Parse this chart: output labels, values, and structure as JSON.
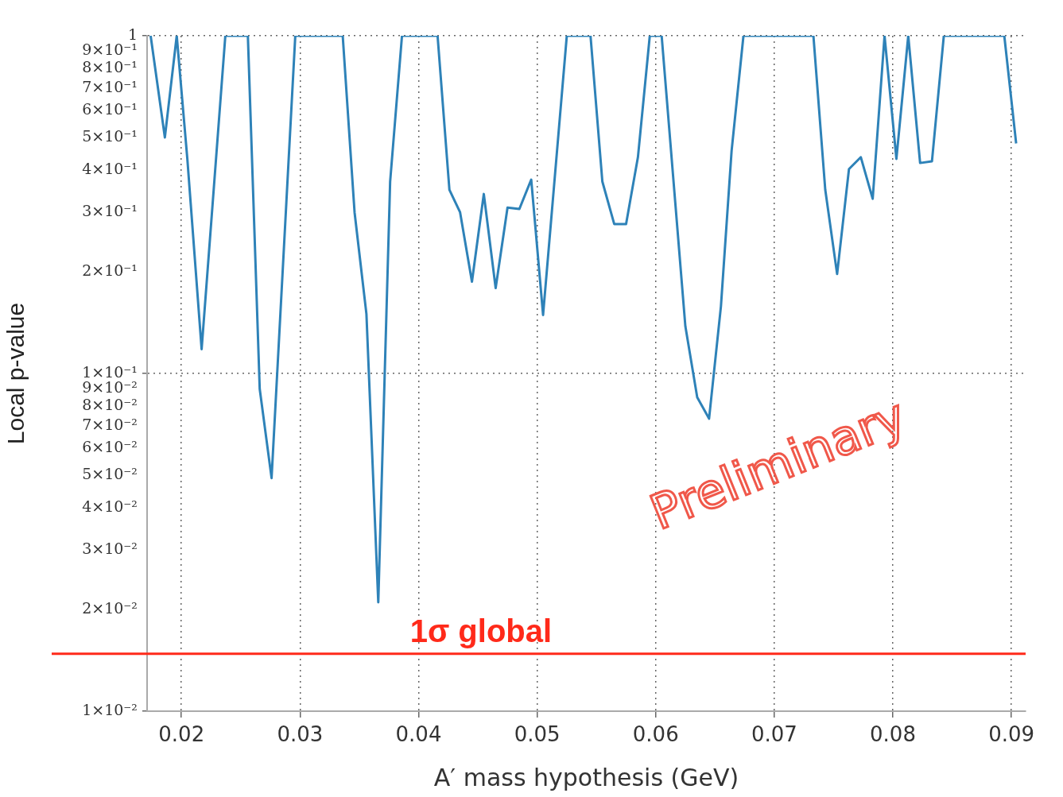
{
  "chart_data": {
    "type": "line",
    "xlabel": "A′ mass hypothesis (GeV)",
    "ylabel": "Local p-value",
    "log": "y",
    "grid": true,
    "line_style": "solid",
    "marker": "none",
    "xlim": [
      0.0171,
      0.0912
    ],
    "xticks": [
      0.02,
      0.03,
      0.04,
      0.05,
      0.06,
      0.07,
      0.08,
      0.09
    ],
    "ylim": [
      0.01,
      1
    ],
    "yticks": [
      {
        "value": 0.01,
        "label": "1×10⁻²"
      },
      {
        "value": 0.02,
        "label": "2×10⁻²"
      },
      {
        "value": 0.03,
        "label": "3×10⁻²"
      },
      {
        "value": 0.04,
        "label": "4×10⁻²"
      },
      {
        "value": 0.05,
        "label": "5×10⁻²"
      },
      {
        "value": 0.06,
        "label": "6×10⁻²"
      },
      {
        "value": 0.07,
        "label": "7×10⁻²"
      },
      {
        "value": 0.08,
        "label": "8×10⁻²"
      },
      {
        "value": 0.09,
        "label": "9×10⁻²"
      },
      {
        "value": 0.1,
        "label": "1×10⁻¹"
      },
      {
        "value": 0.2,
        "label": "2×10⁻¹"
      },
      {
        "value": 0.3,
        "label": "3×10⁻¹"
      },
      {
        "value": 0.4,
        "label": "4×10⁻¹"
      },
      {
        "value": 0.5,
        "label": "5×10⁻¹"
      },
      {
        "value": 0.6,
        "label": "6×10⁻¹"
      },
      {
        "value": 0.7,
        "label": "7×10⁻¹"
      },
      {
        "value": 0.8,
        "label": "8×10⁻¹"
      },
      {
        "value": 0.9,
        "label": "9×10⁻¹"
      },
      1
    ],
    "series": [
      {
        "color": "#2e82b8",
        "x": [
          0.0174,
          0.0186,
          0.0196,
          0.0205,
          0.0217,
          0.0237,
          0.0256,
          0.0266,
          0.0276,
          0.0296,
          0.0336,
          0.0346,
          0.0356,
          0.0366,
          0.0376,
          0.0386,
          0.0416,
          0.0426,
          0.0435,
          0.0445,
          0.0455,
          0.0465,
          0.0475,
          0.0485,
          0.0495,
          0.0505,
          0.0525,
          0.0545,
          0.0555,
          0.0565,
          0.0575,
          0.0585,
          0.0595,
          0.0605,
          0.0625,
          0.0635,
          0.0645,
          0.0655,
          0.0664,
          0.0674,
          0.0733,
          0.0743,
          0.0753,
          0.0763,
          0.0773,
          0.0783,
          0.0793,
          0.0803,
          0.0813,
          0.0823,
          0.0833,
          0.0843,
          0.0894,
          0.0904
        ],
        "values": [
          1,
          0.5,
          1,
          0.43,
          0.118,
          1,
          1,
          0.09,
          0.049,
          1,
          1,
          0.3,
          0.15,
          0.021,
          0.37,
          1,
          1,
          0.35,
          0.3,
          0.187,
          0.34,
          0.179,
          0.31,
          0.307,
          0.375,
          0.149,
          1,
          1,
          0.37,
          0.277,
          0.277,
          0.437,
          1,
          1,
          0.138,
          0.085,
          0.0735,
          0.158,
          0.456,
          1,
          1,
          0.35,
          0.197,
          0.403,
          0.437,
          0.329,
          1,
          0.432,
          1,
          0.42,
          0.425,
          1,
          1,
          0.48
        ]
      }
    ],
    "ref_lines": [
      {
        "axis": "y",
        "value": 0.0148,
        "label": "1σ global",
        "color": "#ff2a1a"
      }
    ],
    "annotations": [
      "Preliminary"
    ]
  }
}
